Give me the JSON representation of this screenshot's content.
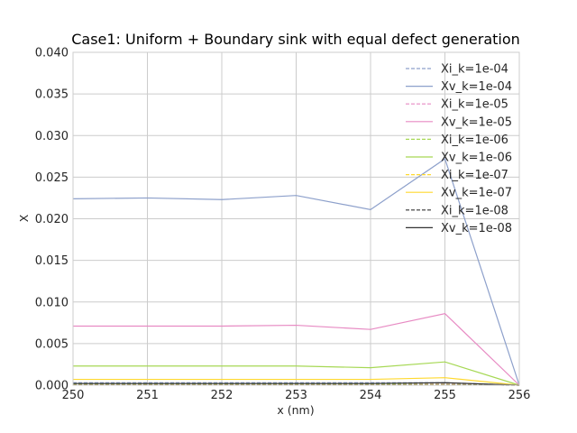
{
  "chart_data": {
    "type": "line",
    "title": "Case1: Uniform + Boundary sink with equal defect generation",
    "xlabel": "x (nm)",
    "ylabel": "X",
    "xlim": [
      250,
      256
    ],
    "ylim": [
      0,
      0.04
    ],
    "x_ticks": [
      "250",
      "251",
      "252",
      "253",
      "254",
      "255",
      "256"
    ],
    "y_ticks": [
      "0.000",
      "0.005",
      "0.010",
      "0.015",
      "0.020",
      "0.025",
      "0.030",
      "0.035",
      "0.040"
    ],
    "grid": true,
    "legend_position": "top-right",
    "x": [
      250,
      251,
      252,
      253,
      254,
      255,
      256
    ],
    "series": [
      {
        "name": "Xi_k=1e-04",
        "color": "#8da0cb",
        "dash": "dashed",
        "values": [
          0.0003,
          0.0003,
          0.0003,
          0.0003,
          0.0003,
          0.0003,
          0.0
        ]
      },
      {
        "name": "Xv_k=1e-04",
        "color": "#8da0cb",
        "dash": "solid",
        "values": [
          0.0224,
          0.0225,
          0.0223,
          0.0228,
          0.0211,
          0.0272,
          0.0
        ]
      },
      {
        "name": "Xi_k=1e-05",
        "color": "#e78ac3",
        "dash": "dashed",
        "values": [
          0.0002,
          0.0002,
          0.0002,
          0.0002,
          0.0002,
          0.0002,
          0.0
        ]
      },
      {
        "name": "Xv_k=1e-05",
        "color": "#e78ac3",
        "dash": "solid",
        "values": [
          0.0071,
          0.0071,
          0.0071,
          0.0072,
          0.0067,
          0.0086,
          0.0
        ]
      },
      {
        "name": "Xi_k=1e-06",
        "color": "#a6d854",
        "dash": "dashed",
        "values": [
          0.0001,
          0.0001,
          0.0001,
          0.0001,
          0.0001,
          0.0001,
          0.0
        ]
      },
      {
        "name": "Xv_k=1e-06",
        "color": "#a6d854",
        "dash": "solid",
        "values": [
          0.0023,
          0.0023,
          0.0023,
          0.0023,
          0.0021,
          0.0028,
          0.0
        ]
      },
      {
        "name": "Xi_k=1e-07",
        "color": "#ffd92f",
        "dash": "dashed",
        "values": [
          5e-05,
          5e-05,
          5e-05,
          5e-05,
          5e-05,
          5e-05,
          0.0
        ]
      },
      {
        "name": "Xv_k=1e-07",
        "color": "#ffd92f",
        "dash": "solid",
        "values": [
          0.0007,
          0.0007,
          0.0007,
          0.0007,
          0.0007,
          0.0009,
          0.0
        ]
      },
      {
        "name": "Xi_k=1e-08",
        "color": "#333333",
        "dash": "dashed",
        "values": [
          2e-05,
          2e-05,
          2e-05,
          2e-05,
          2e-05,
          2e-05,
          0.0
        ]
      },
      {
        "name": "Xv_k=1e-08",
        "color": "#333333",
        "dash": "solid",
        "values": [
          0.0002,
          0.0002,
          0.0002,
          0.0002,
          0.0002,
          0.0003,
          0.0
        ]
      }
    ]
  }
}
